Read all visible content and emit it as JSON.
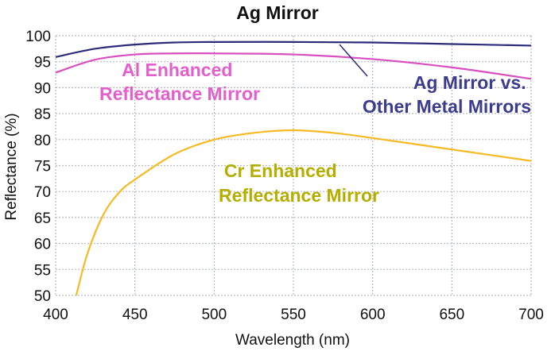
{
  "chart_data": {
    "type": "line",
    "title": "Ag Mirror",
    "xlabel": "Wavelength (nm)",
    "ylabel": "Reflectance (%)",
    "xlim": [
      400,
      700
    ],
    "ylim": [
      50,
      100
    ],
    "xticks": [
      400,
      450,
      500,
      550,
      600,
      650,
      700
    ],
    "yticks": [
      50,
      55,
      60,
      65,
      70,
      75,
      80,
      85,
      90,
      95,
      100
    ],
    "grid": true,
    "series": [
      {
        "name": "Ag Mirror vs. Other Metal Mirrors",
        "label_lines": [
          "Ag Mirror vs.",
          "Other Metal Mirrors"
        ],
        "color": "#2b2b7a",
        "label_color": "#3c3c8e",
        "x": [
          400,
          425,
          450,
          475,
          500,
          550,
          600,
          650,
          700
        ],
        "y": [
          95.9,
          97.5,
          98.3,
          98.7,
          98.8,
          98.8,
          98.7,
          98.4,
          98.1
        ]
      },
      {
        "name": "Al Enhanced Reflectance Mirror",
        "label_lines": [
          "Al Enhanced",
          "Reflectance Mirror"
        ],
        "color": "#d94fc0",
        "label_color": "#e35fcb",
        "x": [
          400,
          425,
          450,
          475,
          500,
          550,
          600,
          650,
          700
        ],
        "y": [
          92.9,
          95.4,
          96.4,
          96.6,
          96.6,
          96.4,
          95.5,
          93.9,
          91.7
        ]
      },
      {
        "name": "Cr Enhanced Reflectance Mirror",
        "label_lines": [
          "Cr Enhanced",
          "Reflectance Mirror"
        ],
        "color": "#f7b924",
        "label_color": "#b5ae00",
        "x": [
          413,
          420,
          430,
          440,
          450,
          475,
          500,
          525,
          550,
          575,
          600,
          650,
          700
        ],
        "y": [
          50,
          58,
          65.5,
          69.8,
          72.3,
          77.2,
          80,
          81.3,
          81.8,
          81.3,
          80.3,
          78.1,
          75.9
        ]
      }
    ]
  }
}
